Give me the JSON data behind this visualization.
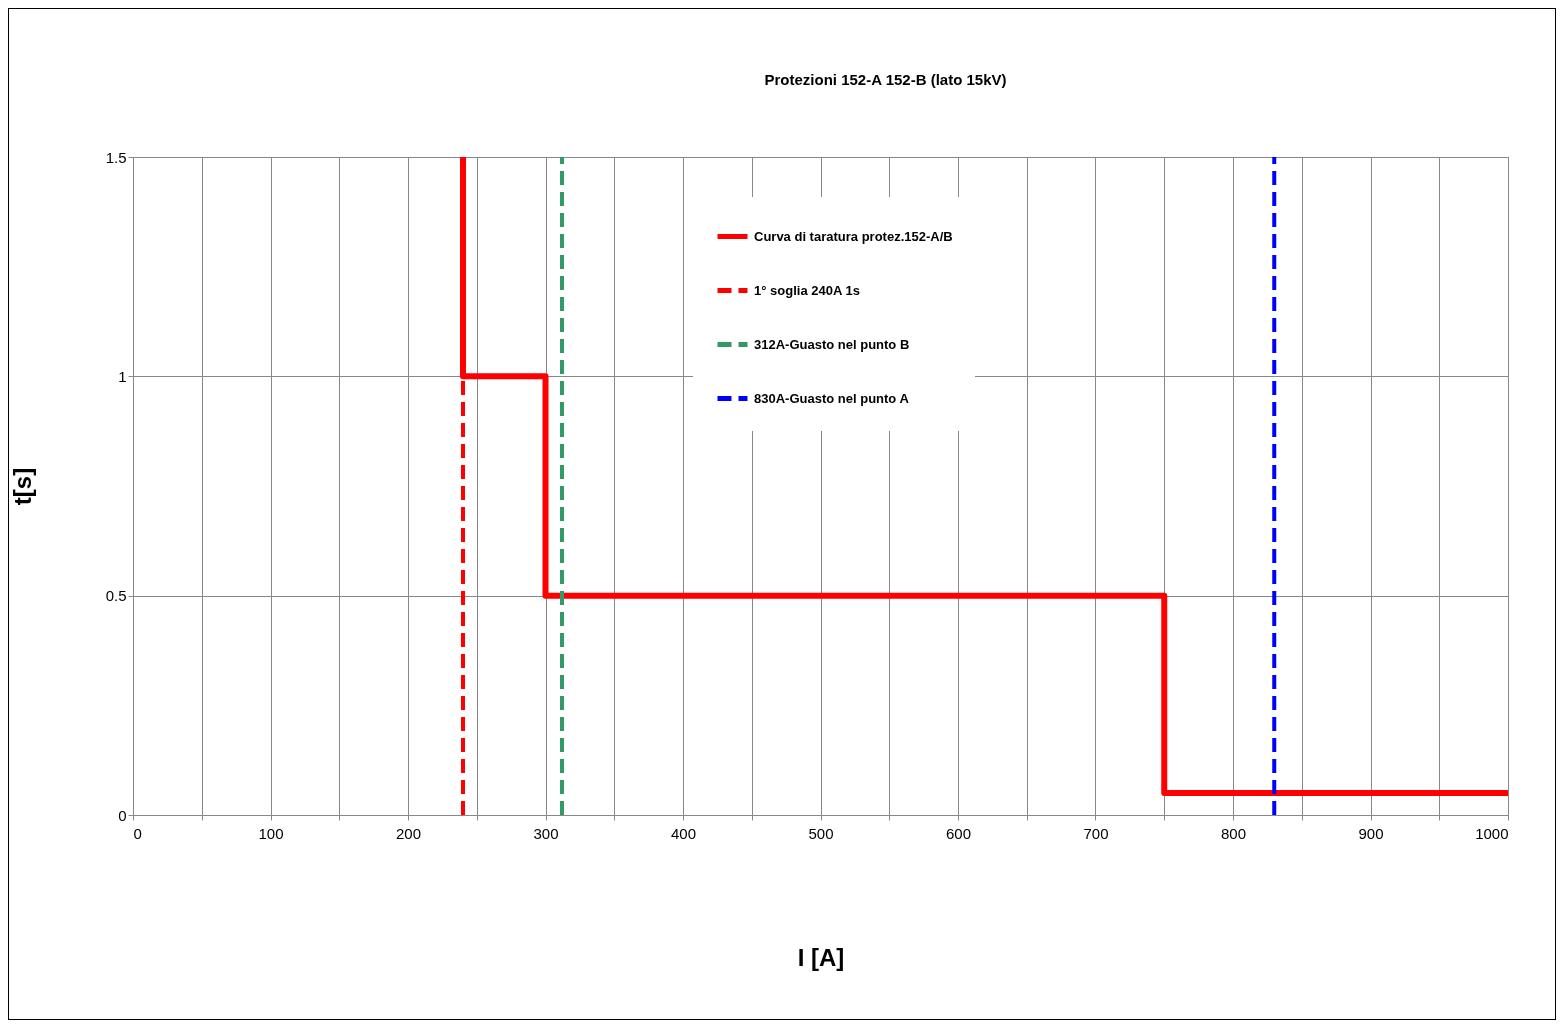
{
  "chart_data": {
    "type": "line",
    "title": "Protezioni 152-A 152-B (lato 15kV)",
    "xlabel": "I [A]",
    "ylabel": "t[s]",
    "xlim": [
      0,
      1000
    ],
    "ylim": [
      0,
      1.5
    ],
    "xticks": [
      0,
      {
        "value": 50,
        "label": null
      },
      100,
      {
        "value": 150,
        "label": null
      },
      200,
      {
        "value": 250,
        "label": null
      },
      300,
      {
        "value": 350,
        "label": null
      },
      400,
      {
        "value": 450,
        "label": null
      },
      500,
      {
        "value": 550,
        "label": null
      },
      600,
      {
        "value": 650,
        "label": null
      },
      700,
      {
        "value": 750,
        "label": null
      },
      800,
      {
        "value": 850,
        "label": null
      },
      900,
      {
        "value": 950,
        "label": null
      },
      1000
    ],
    "yticks": [
      0,
      0.5,
      1,
      1.5
    ],
    "grid": true,
    "legend": "top",
    "marker": "none",
    "series": [
      {
        "name": "Curva di taratura protez.152-A/B",
        "color": "#ff0000",
        "line_style": "solid",
        "x": [
          240,
          240,
          300,
          300,
          750,
          750,
          1000
        ],
        "values": [
          1.5,
          1,
          1,
          0.5,
          0.5,
          0.05,
          0.05
        ]
      },
      {
        "name": "1° soglia 240A 1s",
        "color": "#ff0000",
        "line_style": "dashed",
        "x": [
          240,
          240
        ],
        "values": [
          0,
          1
        ]
      },
      {
        "name": "312A-Guasto nel punto B",
        "color": "#339966",
        "line_style": "dashed",
        "x": [
          312,
          312
        ],
        "values": [
          0,
          1.5
        ]
      },
      {
        "name": "830A-Guasto nel punto A",
        "color": "#0000ff",
        "line_style": "dashed",
        "x": [
          830,
          830
        ],
        "values": [
          0,
          1.5
        ]
      }
    ]
  }
}
